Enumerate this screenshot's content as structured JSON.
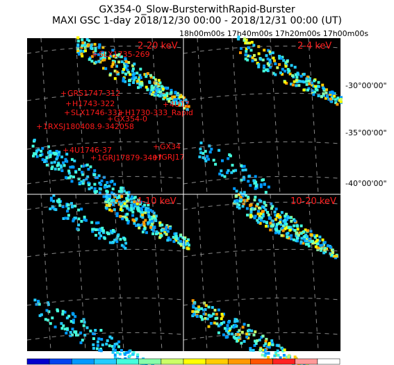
{
  "title": {
    "line1": "GX354-0_Slow-BursterwithRapid-Burster",
    "line2": "MAXI GSC 1-day 2018/12/30 00:00 - 2018/12/31 00:00 (UT)"
  },
  "ra_axis_label": "18h00m00s 17h40m00s 17h20m00s 17h00m00s",
  "dec_labels": [
    "-30°00'00\"",
    "-35°00'00\"",
    "-40°00'00\""
  ],
  "bands": [
    "2-20 keV",
    "2-4 keV",
    "4-10 keV",
    "10-20 keV"
  ],
  "sources": [
    "SLX1735-269",
    "GRS1747-312",
    "H1743-322",
    "SLX1746-331",
    "1RXSJ180408.9-342058",
    "4U1746-37",
    "1GRJ17879-3407",
    "GX34",
    "H1730-333_Rapid",
    "GX354-0",
    "4U17",
    "IGRJ17"
  ],
  "colorbar": {
    "colors": [
      "#0000cc",
      "#0044ee",
      "#0099ff",
      "#22ccff",
      "#44ffdd",
      "#88ffaa",
      "#ccff66",
      "#ffff00",
      "#ffcc00",
      "#ff9900",
      "#ff5500",
      "#ff2222",
      "#ff9999",
      "#ffffff"
    ]
  },
  "colors": {
    "panel_bg": "#000000",
    "grid": "#888888",
    "label": "#ff2020"
  }
}
